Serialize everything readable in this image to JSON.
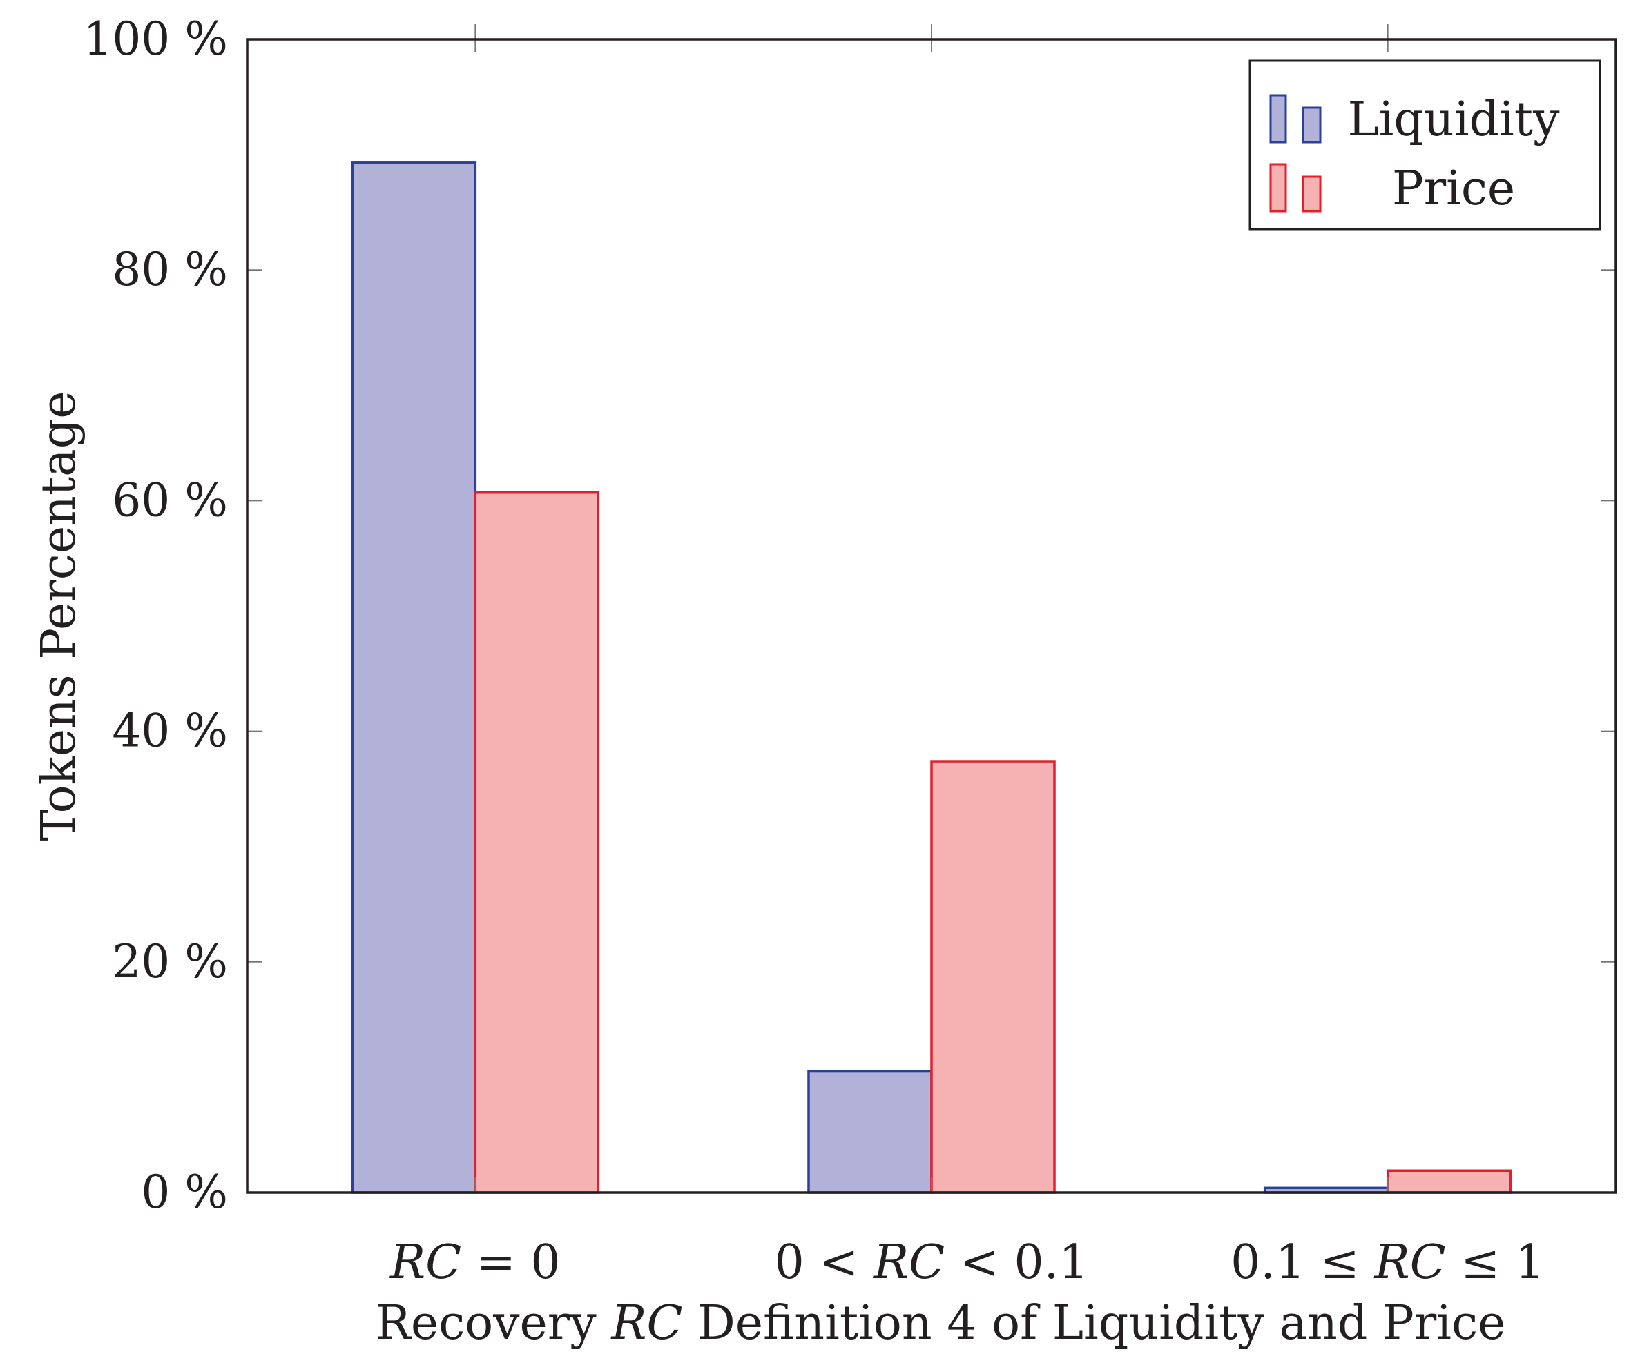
{
  "chart_data": {
    "type": "bar",
    "title": "",
    "xlabel": {
      "before": "Recovery ",
      "italic": "RC",
      "after": " Definition 4 of Liquidity and Price"
    },
    "ylabel": "Tokens Percentage",
    "ylim": [
      0,
      100
    ],
    "yticks": [
      0,
      20,
      40,
      60,
      80,
      100
    ],
    "ytick_suffix": " %",
    "categories": [
      "RC = 0",
      "0 < RC < 0.1",
      "0.1 ≤ RC ≤ 1"
    ],
    "category_parts": [
      [
        {
          "t": "RC",
          "i": true
        },
        {
          "t": " = 0",
          "i": false
        }
      ],
      [
        {
          "t": "0 < ",
          "i": false
        },
        {
          "t": "RC",
          "i": true
        },
        {
          "t": " < 0.1",
          "i": false
        }
      ],
      [
        {
          "t": "0.1 ≤ ",
          "i": false
        },
        {
          "t": "RC",
          "i": true
        },
        {
          "t": " ≤ 1",
          "i": false
        }
      ]
    ],
    "series": [
      {
        "name": "Liquidity",
        "values": [
          89.3,
          10.5,
          0.4
        ],
        "fill": "#b2b2d8",
        "stroke": "#2b3f9c"
      },
      {
        "name": "Price",
        "values": [
          60.7,
          37.4,
          1.9
        ],
        "fill": "#f6b1b3",
        "stroke": "#e2202c"
      }
    ],
    "legend_position": "top-right",
    "grid": false
  }
}
